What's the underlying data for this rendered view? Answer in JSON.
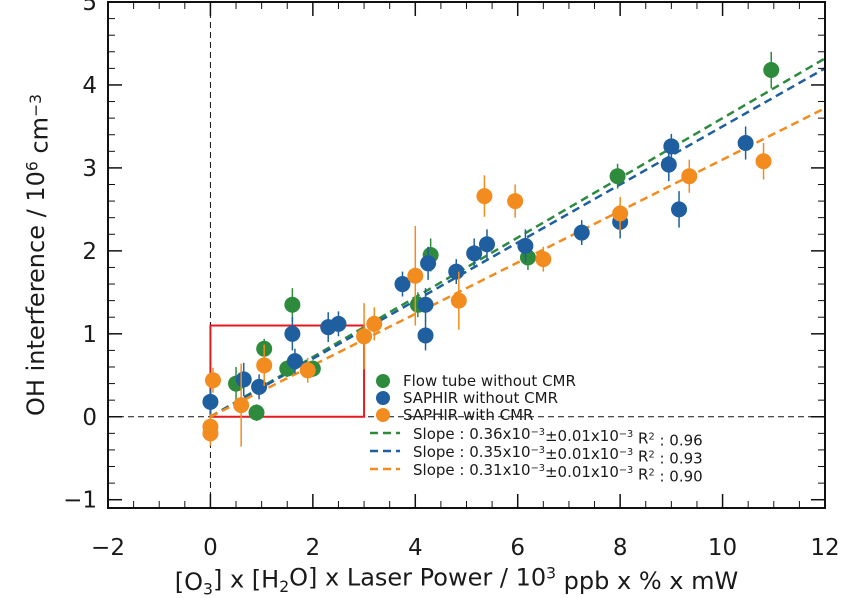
{
  "chart_data": {
    "type": "scatter",
    "xlabel": "[O3] x [H2O] x Laser Power / 10^3 ppb x % x mW",
    "ylabel": "OH interference / 10^6 cm^-3",
    "xlim": [
      -2,
      12
    ],
    "ylim": [
      -1.1,
      5
    ],
    "x_ticks": [
      "−2",
      "0",
      "2",
      "4",
      "6",
      "8",
      "10",
      "12"
    ],
    "y_ticks": [
      "−1",
      "0",
      "1",
      "2",
      "3",
      "4",
      "5"
    ],
    "grid": false,
    "legend_position": "lower-right",
    "highlight_box": {
      "x": [
        0,
        3
      ],
      "y": [
        0,
        1.1
      ],
      "color": "#e41a1c"
    },
    "reference_lines": [
      {
        "axis": "x",
        "value": 0
      },
      {
        "axis": "y",
        "value": 0
      }
    ],
    "series": [
      {
        "name": "Flow tube without CMR",
        "color": "#2e8b3e",
        "points": [
          {
            "x": 0.5,
            "y": 0.4,
            "err": 0.2
          },
          {
            "x": 0.9,
            "y": 0.05,
            "err": 0.1
          },
          {
            "x": 1.05,
            "y": 0.82,
            "err": 0.12
          },
          {
            "x": 1.5,
            "y": 0.58,
            "err": 0.1
          },
          {
            "x": 1.6,
            "y": 1.35,
            "err": 0.2
          },
          {
            "x": 2.0,
            "y": 0.58,
            "err": 0.1
          },
          {
            "x": 4.05,
            "y": 1.35,
            "err": 0.15
          },
          {
            "x": 4.3,
            "y": 1.95,
            "err": 0.2
          },
          {
            "x": 6.2,
            "y": 1.92,
            "err": 0.15
          },
          {
            "x": 7.95,
            "y": 2.9,
            "err": 0.15
          },
          {
            "x": 10.95,
            "y": 4.18,
            "err": 0.22
          }
        ]
      },
      {
        "name": "SAPHIR without CMR",
        "color": "#1f5fa0",
        "points": [
          {
            "x": 0.0,
            "y": 0.18,
            "err": 0.15
          },
          {
            "x": 0.65,
            "y": 0.45,
            "err": 0.2
          },
          {
            "x": 0.95,
            "y": 0.36,
            "err": 0.15
          },
          {
            "x": 1.6,
            "y": 1.0,
            "err": 0.2
          },
          {
            "x": 1.65,
            "y": 0.67,
            "err": 0.15
          },
          {
            "x": 2.3,
            "y": 1.08,
            "err": 0.18
          },
          {
            "x": 2.5,
            "y": 1.12,
            "err": 0.15
          },
          {
            "x": 3.75,
            "y": 1.6,
            "err": 0.15
          },
          {
            "x": 4.2,
            "y": 1.35,
            "err": 0.2
          },
          {
            "x": 4.25,
            "y": 1.85,
            "err": 0.2
          },
          {
            "x": 4.2,
            "y": 0.98,
            "err": 0.18
          },
          {
            "x": 4.8,
            "y": 1.75,
            "err": 0.15
          },
          {
            "x": 5.15,
            "y": 1.97,
            "err": 0.18
          },
          {
            "x": 5.4,
            "y": 2.08,
            "err": 0.18
          },
          {
            "x": 6.15,
            "y": 2.06,
            "err": 0.2
          },
          {
            "x": 7.25,
            "y": 2.22,
            "err": 0.15
          },
          {
            "x": 8.0,
            "y": 2.35,
            "err": 0.2
          },
          {
            "x": 8.95,
            "y": 3.04,
            "err": 0.2
          },
          {
            "x": 9.0,
            "y": 3.26,
            "err": 0.15
          },
          {
            "x": 9.15,
            "y": 2.5,
            "err": 0.22
          },
          {
            "x": 10.45,
            "y": 3.3,
            "err": 0.2
          }
        ]
      },
      {
        "name": "SAPHIR with CMR",
        "color": "#f28c1e",
        "points": [
          {
            "x": 0.0,
            "y": -0.2,
            "err": 0.15
          },
          {
            "x": 0.0,
            "y": -0.12,
            "err": 0.15
          },
          {
            "x": 0.05,
            "y": 0.44,
            "err": 0.15
          },
          {
            "x": 0.6,
            "y": 0.14,
            "err": 0.5
          },
          {
            "x": 1.05,
            "y": 0.62,
            "err": 0.25
          },
          {
            "x": 1.9,
            "y": 0.56,
            "err": 0.15
          },
          {
            "x": 3.0,
            "y": 0.97,
            "err": 0.4
          },
          {
            "x": 3.2,
            "y": 1.12,
            "err": 0.2
          },
          {
            "x": 4.0,
            "y": 1.7,
            "err": 0.6
          },
          {
            "x": 4.85,
            "y": 1.4,
            "err": 0.35
          },
          {
            "x": 5.35,
            "y": 2.66,
            "err": 0.25
          },
          {
            "x": 5.95,
            "y": 2.6,
            "err": 0.2
          },
          {
            "x": 6.5,
            "y": 1.9,
            "err": 0.15
          },
          {
            "x": 8.0,
            "y": 2.45,
            "err": 0.2
          },
          {
            "x": 9.35,
            "y": 2.9,
            "err": 0.2
          },
          {
            "x": 10.8,
            "y": 3.08,
            "err": 0.22
          }
        ]
      }
    ],
    "fits": [
      {
        "label": "Slope : 0.36x10^-3±0.01x10^-3 R^2 : 0.96",
        "slope": 0.36,
        "color": "#2e8b3e",
        "x": [
          0,
          12
        ]
      },
      {
        "label": "Slope : 0.35x10^-3±0.01x10^-3 R^2 : 0.93",
        "slope": 0.35,
        "color": "#1f5fa0",
        "x": [
          0,
          12
        ]
      },
      {
        "label": "Slope : 0.31x10^-3±0.01x10^-3 R^2 : 0.90",
        "slope": 0.31,
        "color": "#f28c1e",
        "x": [
          0,
          12
        ]
      }
    ]
  }
}
